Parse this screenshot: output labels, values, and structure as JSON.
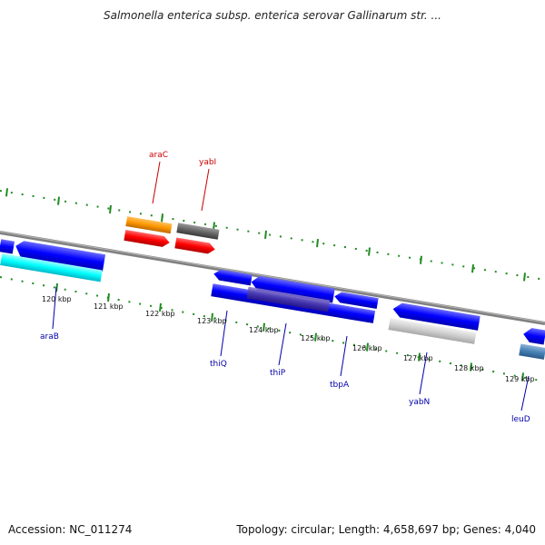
{
  "title": "Salmonella enterica subsp. enterica serovar Gallinarum str. ...",
  "footer": {
    "accession": "Accession: NC_011274",
    "summary": "Topology: circular; Length: 4,658,697 bp; Genes: 4,040"
  },
  "colors": {
    "backbone": "#808080",
    "forward_label": "#cc0000",
    "reverse_label": "#0000aa",
    "tick": "#228b22"
  },
  "ticks": [
    {
      "label": "120 kbp"
    },
    {
      "label": "121 kbp"
    },
    {
      "label": "122 kbp"
    },
    {
      "label": "123 kbp"
    },
    {
      "label": "124 kbp"
    },
    {
      "label": "125 kbp"
    },
    {
      "label": "126 kbp"
    },
    {
      "label": "127 kbp"
    },
    {
      "label": "128 kbp"
    },
    {
      "label": "129 kbp"
    }
  ],
  "gene_labels": [
    {
      "name": "araC",
      "strand": "forward"
    },
    {
      "name": "yabI",
      "strand": "forward"
    },
    {
      "name": "araB",
      "strand": "reverse"
    },
    {
      "name": "thiQ",
      "strand": "reverse"
    },
    {
      "name": "thiP",
      "strand": "reverse"
    },
    {
      "name": "tbpA",
      "strand": "reverse"
    },
    {
      "name": "yabN",
      "strand": "reverse"
    },
    {
      "name": "leuD",
      "strand": "reverse"
    }
  ]
}
